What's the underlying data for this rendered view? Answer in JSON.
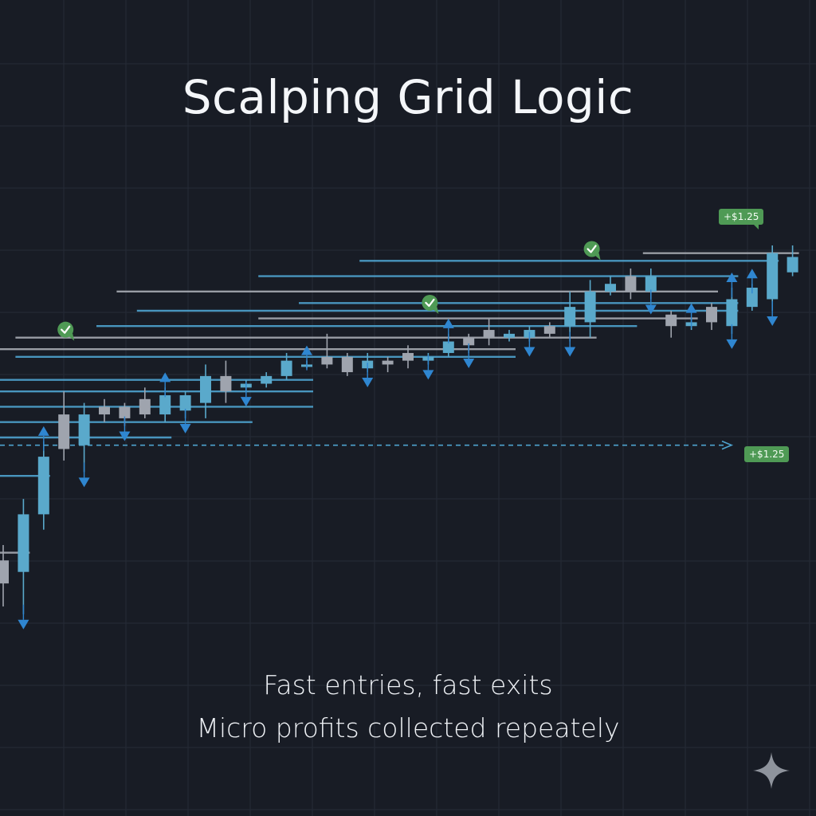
{
  "title": "Scalping Grid Logic",
  "captions": [
    "Fast entries, fast exits",
    "Micro profits collected repeately"
  ],
  "badges": {
    "top_profit": "+$1.25",
    "mid_profit": "+$1.25"
  },
  "icons": {
    "checkmark": "check-bubble-icon",
    "corner": "sparkle-icon",
    "buy": "triangle-up-icon",
    "sell": "triangle-down-icon"
  },
  "colors": {
    "background": "#181c25",
    "grid": "#262b36",
    "candle_blue": "#5aa9cb",
    "candle_gray": "#9fa4ae",
    "level_blue": "#4ea3cf",
    "level_gray": "#a7abb3",
    "arrow_blue": "#2f86d0",
    "profit_green": "#4f9a55"
  },
  "chart_data": {
    "type": "candlestick",
    "title": "",
    "legend": "none",
    "grid": true,
    "candles": [
      {
        "o": 0.12,
        "c": 0.18,
        "h": 0.22,
        "l": 0.06,
        "color": "gray"
      },
      {
        "o": 0.15,
        "c": 0.3,
        "h": 0.34,
        "l": 0.04,
        "color": "blue"
      },
      {
        "o": 0.3,
        "c": 0.45,
        "h": 0.49,
        "l": 0.26,
        "color": "blue"
      },
      {
        "o": 0.47,
        "c": 0.56,
        "h": 0.62,
        "l": 0.44,
        "color": "gray"
      },
      {
        "o": 0.48,
        "c": 0.56,
        "h": 0.59,
        "l": 0.41,
        "color": "blue"
      },
      {
        "o": 0.56,
        "c": 0.58,
        "h": 0.6,
        "l": 0.54,
        "color": "gray"
      },
      {
        "o": 0.55,
        "c": 0.58,
        "h": 0.59,
        "l": 0.53,
        "color": "gray"
      },
      {
        "o": 0.56,
        "c": 0.6,
        "h": 0.63,
        "l": 0.55,
        "color": "gray"
      },
      {
        "o": 0.56,
        "c": 0.61,
        "h": 0.63,
        "l": 0.54,
        "color": "blue"
      },
      {
        "o": 0.57,
        "c": 0.61,
        "h": 0.62,
        "l": 0.55,
        "color": "blue"
      },
      {
        "o": 0.59,
        "c": 0.66,
        "h": 0.69,
        "l": 0.55,
        "color": "blue"
      },
      {
        "o": 0.62,
        "c": 0.66,
        "h": 0.7,
        "l": 0.59,
        "color": "gray"
      },
      {
        "o": 0.63,
        "c": 0.64,
        "h": 0.65,
        "l": 0.62,
        "color": "blue"
      },
      {
        "o": 0.64,
        "c": 0.66,
        "h": 0.67,
        "l": 0.63,
        "color": "blue"
      },
      {
        "o": 0.66,
        "c": 0.7,
        "h": 0.72,
        "l": 0.65,
        "color": "blue"
      },
      {
        "o": 0.69,
        "c": 0.69,
        "h": 0.7,
        "l": 0.68,
        "color": "blue"
      },
      {
        "o": 0.69,
        "c": 0.71,
        "h": 0.77,
        "l": 0.68,
        "color": "gray"
      },
      {
        "o": 0.71,
        "c": 0.67,
        "h": 0.72,
        "l": 0.66,
        "color": "gray"
      },
      {
        "o": 0.68,
        "c": 0.7,
        "h": 0.72,
        "l": 0.67,
        "color": "blue"
      },
      {
        "o": 0.69,
        "c": 0.7,
        "h": 0.71,
        "l": 0.67,
        "color": "gray"
      },
      {
        "o": 0.7,
        "c": 0.72,
        "h": 0.74,
        "l": 0.68,
        "color": "gray"
      },
      {
        "o": 0.7,
        "c": 0.71,
        "h": 0.72,
        "l": 0.69,
        "color": "blue"
      },
      {
        "o": 0.72,
        "c": 0.75,
        "h": 0.77,
        "l": 0.71,
        "color": "blue"
      },
      {
        "o": 0.74,
        "c": 0.76,
        "h": 0.77,
        "l": 0.72,
        "color": "gray"
      },
      {
        "o": 0.76,
        "c": 0.78,
        "h": 0.81,
        "l": 0.74,
        "color": "gray"
      },
      {
        "o": 0.76,
        "c": 0.77,
        "h": 0.78,
        "l": 0.75,
        "color": "blue"
      },
      {
        "o": 0.76,
        "c": 0.78,
        "h": 0.79,
        "l": 0.75,
        "color": "blue"
      },
      {
        "o": 0.77,
        "c": 0.79,
        "h": 0.8,
        "l": 0.76,
        "color": "gray"
      },
      {
        "o": 0.79,
        "c": 0.84,
        "h": 0.88,
        "l": 0.75,
        "color": "blue"
      },
      {
        "o": 0.8,
        "c": 0.88,
        "h": 0.91,
        "l": 0.76,
        "color": "blue"
      },
      {
        "o": 0.88,
        "c": 0.9,
        "h": 0.92,
        "l": 0.87,
        "color": "blue"
      },
      {
        "o": 0.88,
        "c": 0.92,
        "h": 0.94,
        "l": 0.86,
        "color": "gray"
      },
      {
        "o": 0.88,
        "c": 0.92,
        "h": 0.94,
        "l": 0.86,
        "color": "blue"
      },
      {
        "o": 0.79,
        "c": 0.82,
        "h": 0.83,
        "l": 0.76,
        "color": "gray"
      },
      {
        "o": 0.79,
        "c": 0.8,
        "h": 0.81,
        "l": 0.78,
        "color": "blue"
      },
      {
        "o": 0.8,
        "c": 0.84,
        "h": 0.85,
        "l": 0.78,
        "color": "gray"
      },
      {
        "o": 0.79,
        "c": 0.86,
        "h": 0.89,
        "l": 0.77,
        "color": "blue"
      },
      {
        "o": 0.84,
        "c": 0.89,
        "h": 0.9,
        "l": 0.83,
        "color": "blue"
      },
      {
        "o": 0.86,
        "c": 0.98,
        "h": 1.0,
        "l": 0.83,
        "color": "blue"
      },
      {
        "o": 0.93,
        "c": 0.97,
        "h": 1.0,
        "l": 0.92,
        "color": "blue"
      }
    ],
    "signals": [
      {
        "candle": 1,
        "kind": "sell"
      },
      {
        "candle": 2,
        "kind": "buy"
      },
      {
        "candle": 4,
        "kind": "sell"
      },
      {
        "candle": 6,
        "kind": "sell"
      },
      {
        "candle": 8,
        "kind": "buy"
      },
      {
        "candle": 9,
        "kind": "sell"
      },
      {
        "candle": 12,
        "kind": "sell"
      },
      {
        "candle": 15,
        "kind": "buy"
      },
      {
        "candle": 18,
        "kind": "sell"
      },
      {
        "candle": 21,
        "kind": "sell"
      },
      {
        "candle": 22,
        "kind": "buy"
      },
      {
        "candle": 23,
        "kind": "sell"
      },
      {
        "candle": 26,
        "kind": "sell"
      },
      {
        "candle": 28,
        "kind": "sell"
      },
      {
        "candle": 32,
        "kind": "sell"
      },
      {
        "candle": 34,
        "kind": "buy"
      },
      {
        "candle": 36,
        "kind": "buy"
      },
      {
        "candle": 36,
        "kind": "sell"
      },
      {
        "candle": 37,
        "kind": "buy"
      },
      {
        "candle": 38,
        "kind": "sell"
      }
    ],
    "levels": [
      {
        "value": 0.2,
        "from": 0,
        "to": 1,
        "color": "gray"
      },
      {
        "value": 0.4,
        "from": 0,
        "to": 2,
        "color": "blue"
      },
      {
        "value": 0.5,
        "from": 0,
        "to": 8,
        "color": "blue"
      },
      {
        "value": 0.54,
        "from": 0,
        "to": 12,
        "color": "blue"
      },
      {
        "value": 0.58,
        "from": 0,
        "to": 15,
        "color": "blue"
      },
      {
        "value": 0.62,
        "from": 0,
        "to": 15,
        "color": "blue"
      },
      {
        "value": 0.65,
        "from": 0,
        "to": 15,
        "color": "blue"
      },
      {
        "value": 0.71,
        "from": 1,
        "to": 25,
        "color": "blue"
      },
      {
        "value": 0.73,
        "from": 0,
        "to": 25,
        "color": "gray"
      },
      {
        "value": 0.76,
        "from": 1,
        "to": 29,
        "color": "gray"
      },
      {
        "value": 0.79,
        "from": 5,
        "to": 31,
        "color": "blue"
      },
      {
        "value": 0.81,
        "from": 13,
        "to": 34,
        "color": "gray"
      },
      {
        "value": 0.83,
        "from": 7,
        "to": 36,
        "color": "blue"
      },
      {
        "value": 0.85,
        "from": 15,
        "to": 36,
        "color": "blue"
      },
      {
        "value": 0.88,
        "from": 6,
        "to": 35,
        "color": "gray"
      },
      {
        "value": 0.92,
        "from": 13,
        "to": 36,
        "color": "blue"
      },
      {
        "value": 0.96,
        "from": 18,
        "to": 38,
        "color": "blue"
      },
      {
        "value": 0.98,
        "from": 32,
        "to": 39,
        "color": "gray"
      }
    ],
    "dashed_level": {
      "value": 0.48,
      "color": "blue"
    },
    "entry_checks": [
      {
        "candle": 3,
        "value": 0.76
      },
      {
        "candle": 21,
        "value": 0.83
      },
      {
        "candle": 29,
        "value": 0.97
      }
    ]
  }
}
